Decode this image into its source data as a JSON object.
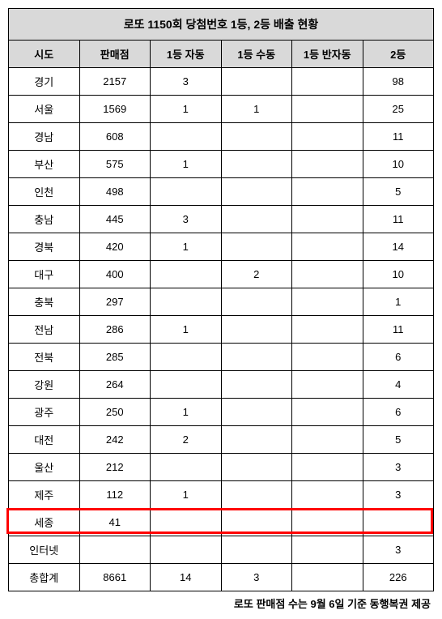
{
  "title": "로또 1150회 당첨번호 1등, 2등 배출 현황",
  "columns": [
    "시도",
    "판매점",
    "1등 자동",
    "1등 수동",
    "1등 반자동",
    "2등"
  ],
  "rows": [
    {
      "c0": "경기",
      "c1": "2157",
      "c2": "3",
      "c3": "",
      "c4": "",
      "c5": "98"
    },
    {
      "c0": "서울",
      "c1": "1569",
      "c2": "1",
      "c3": "1",
      "c4": "",
      "c5": "25"
    },
    {
      "c0": "경남",
      "c1": "608",
      "c2": "",
      "c3": "",
      "c4": "",
      "c5": "11"
    },
    {
      "c0": "부산",
      "c1": "575",
      "c2": "1",
      "c3": "",
      "c4": "",
      "c5": "10"
    },
    {
      "c0": "인천",
      "c1": "498",
      "c2": "",
      "c3": "",
      "c4": "",
      "c5": "5"
    },
    {
      "c0": "충남",
      "c1": "445",
      "c2": "3",
      "c3": "",
      "c4": "",
      "c5": "11"
    },
    {
      "c0": "경북",
      "c1": "420",
      "c2": "1",
      "c3": "",
      "c4": "",
      "c5": "14"
    },
    {
      "c0": "대구",
      "c1": "400",
      "c2": "",
      "c3": "2",
      "c4": "",
      "c5": "10"
    },
    {
      "c0": "충북",
      "c1": "297",
      "c2": "",
      "c3": "",
      "c4": "",
      "c5": "1"
    },
    {
      "c0": "전남",
      "c1": "286",
      "c2": "1",
      "c3": "",
      "c4": "",
      "c5": "11"
    },
    {
      "c0": "전북",
      "c1": "285",
      "c2": "",
      "c3": "",
      "c4": "",
      "c5": "6"
    },
    {
      "c0": "강원",
      "c1": "264",
      "c2": "",
      "c3": "",
      "c4": "",
      "c5": "4"
    },
    {
      "c0": "광주",
      "c1": "250",
      "c2": "1",
      "c3": "",
      "c4": "",
      "c5": "6"
    },
    {
      "c0": "대전",
      "c1": "242",
      "c2": "2",
      "c3": "",
      "c4": "",
      "c5": "5"
    },
    {
      "c0": "울산",
      "c1": "212",
      "c2": "",
      "c3": "",
      "c4": "",
      "c5": "3"
    },
    {
      "c0": "제주",
      "c1": "112",
      "c2": "1",
      "c3": "",
      "c4": "",
      "c5": "3"
    },
    {
      "c0": "세종",
      "c1": "41",
      "c2": "",
      "c3": "",
      "c4": "",
      "c5": ""
    },
    {
      "c0": "인터넷",
      "c1": "",
      "c2": "",
      "c3": "",
      "c4": "",
      "c5": "3"
    },
    {
      "c0": "총합계",
      "c1": "8661",
      "c2": "14",
      "c3": "3",
      "c4": "",
      "c5": "226"
    }
  ],
  "highlight_row_index": 16,
  "highlight_color": "#ff0000",
  "footnote": "로또 판매점 수는 9월 6일 기준 동행복권 제공"
}
